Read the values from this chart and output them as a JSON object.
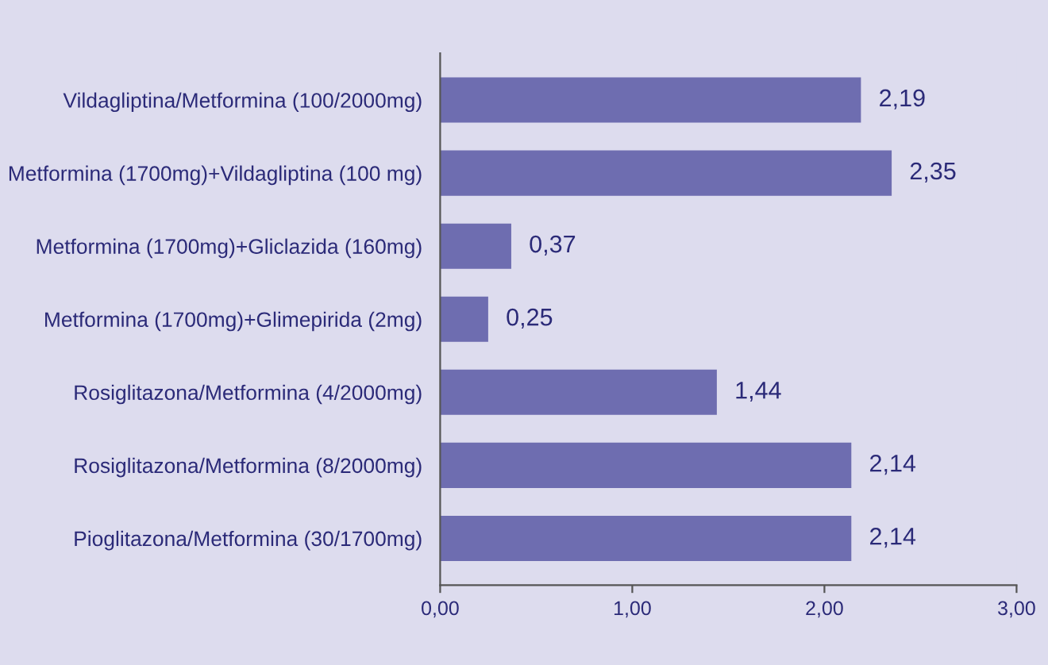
{
  "chart_data": {
    "type": "bar",
    "orientation": "horizontal",
    "categories": [
      "Vildagliptina/Metformina (100/2000mg)",
      "Metformina (1700mg)+Vildagliptina (100 mg)",
      "Metformina (1700mg)+Gliclazida (160mg)",
      "Metformina (1700mg)+Glimepirida (2mg)",
      "Rosiglitazona/Metformina (4/2000mg)",
      "Rosiglitazona/Metformina (8/2000mg)",
      "Pioglitazona/Metformina (30/1700mg)"
    ],
    "values": [
      2.19,
      2.35,
      0.37,
      0.25,
      1.44,
      2.14,
      2.14
    ],
    "value_labels": [
      "2,19",
      "2,35",
      "0,37",
      "0,25",
      "1,44",
      "2,14",
      "2,14"
    ],
    "color": "#6e6db0",
    "xlim": [
      0,
      3
    ],
    "xticks": [
      {
        "value": 0,
        "label": "0,00"
      },
      {
        "value": 1,
        "label": "1,00"
      },
      {
        "value": 2,
        "label": "2,00"
      },
      {
        "value": 3,
        "label": "3,00"
      }
    ],
    "grid": false,
    "legend": false
  }
}
